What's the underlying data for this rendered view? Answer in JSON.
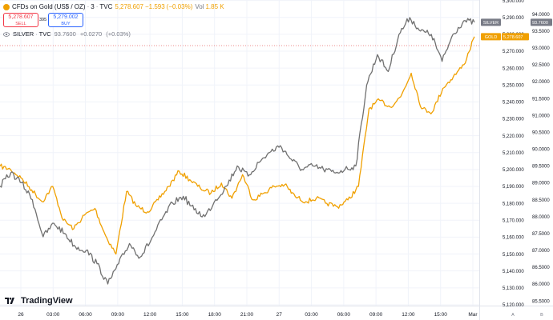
{
  "header": {
    "title": "CFDs on Gold (US$ / OZ)",
    "interval": "3",
    "source": "TVC",
    "stats": [
      "5,278.607",
      "−1.593",
      "(−0.03%)"
    ],
    "vol_label": "Vol",
    "vol_value": "1.85 K",
    "sell_price": "5,278.607",
    "sell_label": "SELL",
    "spread": "395",
    "buy_price": "5,279.002",
    "buy_label": "BUY"
  },
  "comparison": {
    "symbol": "SILVER",
    "source": "TVC",
    "stats": [
      "93.7600",
      "+0.0270",
      "(+0.03%)"
    ]
  },
  "brand": {
    "name": "TradingView"
  },
  "colors": {
    "gold": "#f0a000",
    "silver": "#707070",
    "grid": "#f0f3fa",
    "badge_silver": "#787b86"
  },
  "chart_data": {
    "type": "line",
    "x_ticks": [
      "26",
      "03:00",
      "06:00",
      "09:00",
      "12:00",
      "15:00",
      "18:00",
      "21:00",
      "27",
      "03:00",
      "06:00",
      "09:00",
      "12:00",
      "15:00",
      "Mar"
    ],
    "y_left_ticks": [
      "5,300.000",
      "5,290.000",
      "5,280.000",
      "5,270.000",
      "5,260.000",
      "5,250.000",
      "5,240.000",
      "5,230.000",
      "5,220.000",
      "5,210.000",
      "5,200.000",
      "5,190.000",
      "5,180.000",
      "5,170.000",
      "5,160.000",
      "5,150.000",
      "5,140.000",
      "5,130.000",
      "5,120.000"
    ],
    "y_left_range": [
      5119.5,
      5300.3
    ],
    "y_right_ticks": [
      "94.0000",
      "93.5000",
      "93.0000",
      "92.5000",
      "92.0000",
      "91.5000",
      "91.0000",
      "90.5000",
      "90.0000",
      "89.5000",
      "89.0000",
      "88.5000",
      "88.0000",
      "87.5000",
      "87.0000",
      "86.5000",
      "86.0000",
      "85.5000"
    ],
    "y_right_range": [
      85.36,
      94.42
    ],
    "series": [
      {
        "name": "GOLD",
        "axis": "left",
        "last_value": "5,278.607",
        "points": [
          [
            "26",
            5202
          ],
          [
            "01:00",
            5200
          ],
          [
            "02:00",
            5195
          ],
          [
            "03:00",
            5188
          ],
          [
            "04:00",
            5181
          ],
          [
            "05:00",
            5190
          ],
          [
            "06:00",
            5170
          ],
          [
            "07:00",
            5165
          ],
          [
            "08:00",
            5173
          ],
          [
            "09:00",
            5177
          ],
          [
            "09:30",
            5161
          ],
          [
            "10:00",
            5150
          ],
          [
            "10:30",
            5187
          ],
          [
            "11:00",
            5178
          ],
          [
            "12:00",
            5175
          ],
          [
            "13:00",
            5182
          ],
          [
            "14:00",
            5190
          ],
          [
            "15:00",
            5199
          ],
          [
            "16:00",
            5194
          ],
          [
            "17:00",
            5189
          ],
          [
            "18:00",
            5186
          ],
          [
            "19:00",
            5192
          ],
          [
            "20:00",
            5183
          ],
          [
            "21:00",
            5197
          ],
          [
            "22:00",
            5182
          ],
          [
            "23:00",
            5186
          ],
          [
            "27",
            5190
          ],
          [
            "01:00",
            5191
          ],
          [
            "02:00",
            5184
          ],
          [
            "03:00",
            5181
          ],
          [
            "04:00",
            5183
          ],
          [
            "05:00",
            5180
          ],
          [
            "06:00",
            5178
          ],
          [
            "07:00",
            5182
          ],
          [
            "08:00",
            5190
          ],
          [
            "08:30",
            5236
          ],
          [
            "09:00",
            5241
          ],
          [
            "10:00",
            5237
          ],
          [
            "11:00",
            5243
          ],
          [
            "11:30",
            5257
          ],
          [
            "12:00",
            5236
          ],
          [
            "13:00",
            5234
          ],
          [
            "14:00",
            5248
          ],
          [
            "15:00",
            5255
          ],
          [
            "16:00",
            5262
          ],
          [
            "Mar",
            5278.607
          ]
        ]
      },
      {
        "name": "SILVER",
        "axis": "right",
        "last_value": "93.7600",
        "points": [
          [
            "26",
            88.9
          ],
          [
            "01:00",
            89.3
          ],
          [
            "02:00",
            89.0
          ],
          [
            "03:00",
            88.5
          ],
          [
            "04:00",
            87.4
          ],
          [
            "05:00",
            87.8
          ],
          [
            "06:00",
            87.5
          ],
          [
            "07:00",
            87.1
          ],
          [
            "08:00",
            87.0
          ],
          [
            "09:00",
            86.6
          ],
          [
            "09:30",
            86.0
          ],
          [
            "10:00",
            86.6
          ],
          [
            "11:00",
            87.2
          ],
          [
            "12:00",
            86.8
          ],
          [
            "13:00",
            87.3
          ],
          [
            "14:00",
            87.9
          ],
          [
            "15:00",
            88.4
          ],
          [
            "16:00",
            88.6
          ],
          [
            "17:00",
            88.2
          ],
          [
            "18:00",
            88.0
          ],
          [
            "19:00",
            88.5
          ],
          [
            "20:00",
            88.9
          ],
          [
            "21:00",
            89.5
          ],
          [
            "22:00",
            89.2
          ],
          [
            "23:00",
            89.6
          ],
          [
            "27",
            89.9
          ],
          [
            "01:00",
            90.1
          ],
          [
            "02:00",
            89.7
          ],
          [
            "03:00",
            89.4
          ],
          [
            "04:00",
            89.5
          ],
          [
            "05:00",
            89.4
          ],
          [
            "06:00",
            89.3
          ],
          [
            "07:00",
            89.4
          ],
          [
            "08:00",
            89.5
          ],
          [
            "08:30",
            91.9
          ],
          [
            "09:00",
            92.8
          ],
          [
            "10:00",
            92.3
          ],
          [
            "11:00",
            93.4
          ],
          [
            "11:30",
            93.9
          ],
          [
            "12:00",
            93.5
          ],
          [
            "13:00",
            93.4
          ],
          [
            "14:00",
            92.6
          ],
          [
            "15:00",
            93.4
          ],
          [
            "16:00",
            93.8
          ],
          [
            "Mar",
            93.76
          ]
        ]
      }
    ]
  }
}
